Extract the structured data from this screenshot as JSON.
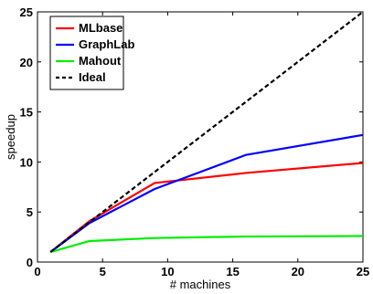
{
  "chart_data": {
    "type": "line",
    "title": "",
    "xlabel": "# machines",
    "ylabel": "speedup",
    "xlim": [
      0,
      25
    ],
    "ylim": [
      0,
      25
    ],
    "xticks": [
      0,
      5,
      10,
      15,
      20,
      25
    ],
    "yticks": [
      0,
      5,
      10,
      15,
      20,
      25
    ],
    "grid": false,
    "legend_position": "top-left",
    "series": [
      {
        "name": "MLbase",
        "color": "#ff0000",
        "dash": "solid",
        "x": [
          1,
          4,
          9,
          16,
          25
        ],
        "y": [
          1.0,
          4.1,
          7.9,
          8.9,
          9.9
        ]
      },
      {
        "name": "GraphLab",
        "color": "#0000ff",
        "dash": "solid",
        "x": [
          1,
          4,
          9,
          16,
          25
        ],
        "y": [
          1.0,
          3.9,
          7.3,
          10.7,
          12.7
        ]
      },
      {
        "name": "Mahout",
        "color": "#00ee00",
        "dash": "solid",
        "x": [
          1,
          4,
          9,
          16,
          25
        ],
        "y": [
          1.0,
          2.1,
          2.4,
          2.55,
          2.6
        ]
      },
      {
        "name": "Ideal",
        "color": "#000000",
        "dash": "dashed",
        "x": [
          1,
          25
        ],
        "y": [
          1,
          25
        ]
      }
    ]
  }
}
